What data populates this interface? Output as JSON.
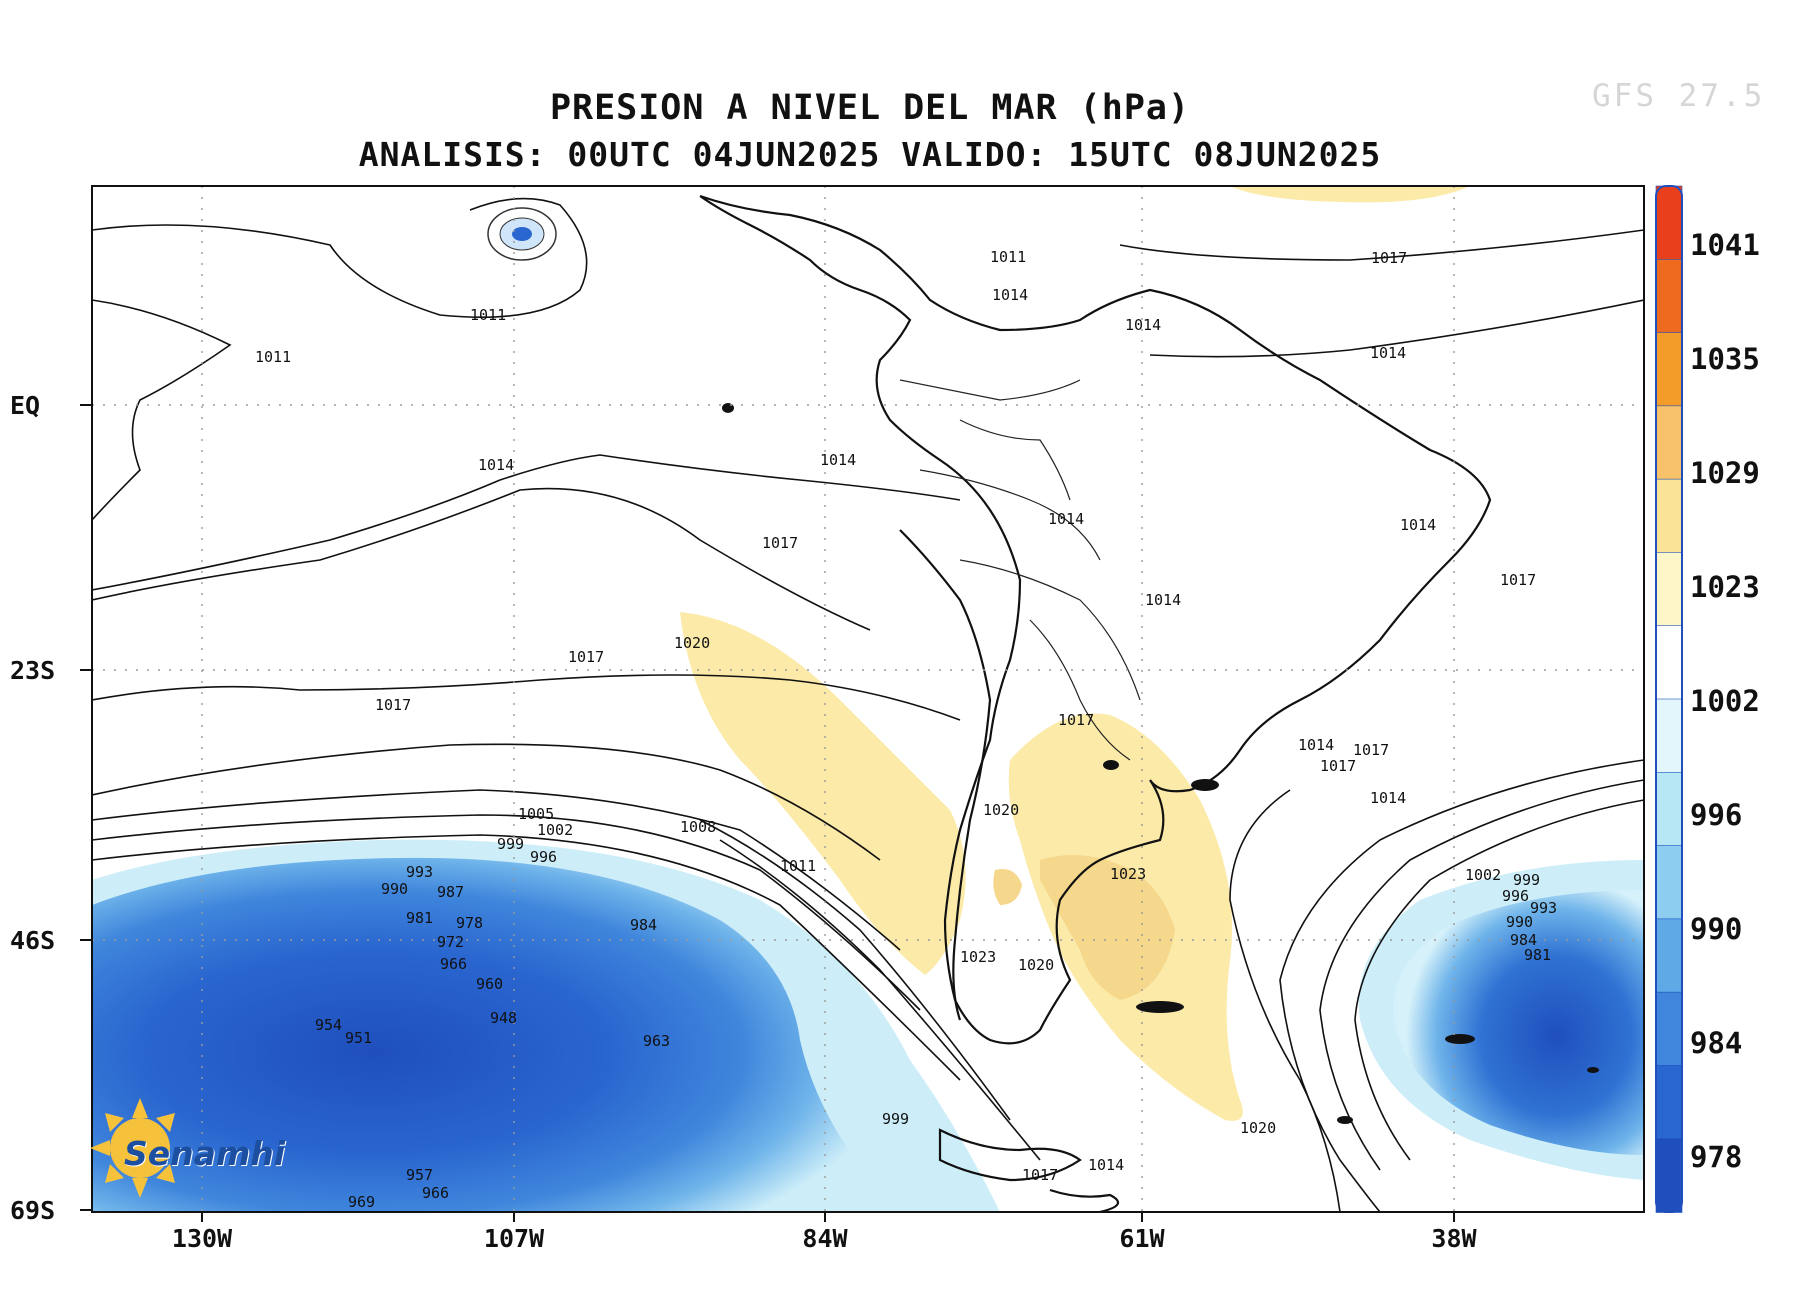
{
  "title": {
    "line1": "PRESION A NIVEL DEL MAR (hPa)",
    "line2": "ANALISIS: 00UTC 04JUN2025 VALIDO: 15UTC 08JUN2025"
  },
  "model_tag": "GFS 27.5",
  "latitude_labels": [
    "EQ",
    "23S",
    "46S",
    "69S"
  ],
  "longitude_labels": [
    "130W",
    "107W",
    "84W",
    "61W",
    "38W"
  ],
  "colorbar": {
    "labels": [
      "1041",
      "1035",
      "1029",
      "1023",
      "1002",
      "996",
      "990",
      "984",
      "978"
    ],
    "colors": [
      "#e8401c",
      "#ee6a1e",
      "#f39c2a",
      "#f7c26a",
      "#f9e396",
      "#fdf6c8",
      "#ffffff",
      "#e3f6fb",
      "#b7e6f5",
      "#8ccdf0",
      "#5fa9e6",
      "#3f86dc",
      "#2a66cf",
      "#1f4fbd"
    ]
  },
  "contour_labels": [
    "1011",
    "1011",
    "1011",
    "1014",
    "1014",
    "1014",
    "1014",
    "1014",
    "1014",
    "1014",
    "1014",
    "1014",
    "1014",
    "1014",
    "1017",
    "1017",
    "1017",
    "1017",
    "1017",
    "1017",
    "1017",
    "1017",
    "1017",
    "1020",
    "1020",
    "1020",
    "1020",
    "1023",
    "1023",
    "1005",
    "1002",
    "999",
    "996",
    "1008",
    "1011",
    "993",
    "990",
    "987",
    "981",
    "978",
    "972",
    "966",
    "960",
    "948",
    "954",
    "951",
    "984",
    "963",
    "999",
    "957",
    "966",
    "969",
    "1002",
    "999",
    "996",
    "993",
    "990",
    "984",
    "981"
  ],
  "logo_text": "Senamhi",
  "legend": {
    "high_pressure_color": "#f9e396",
    "low_pressure_color": "#2a66cf",
    "coast_color": "#111111"
  }
}
